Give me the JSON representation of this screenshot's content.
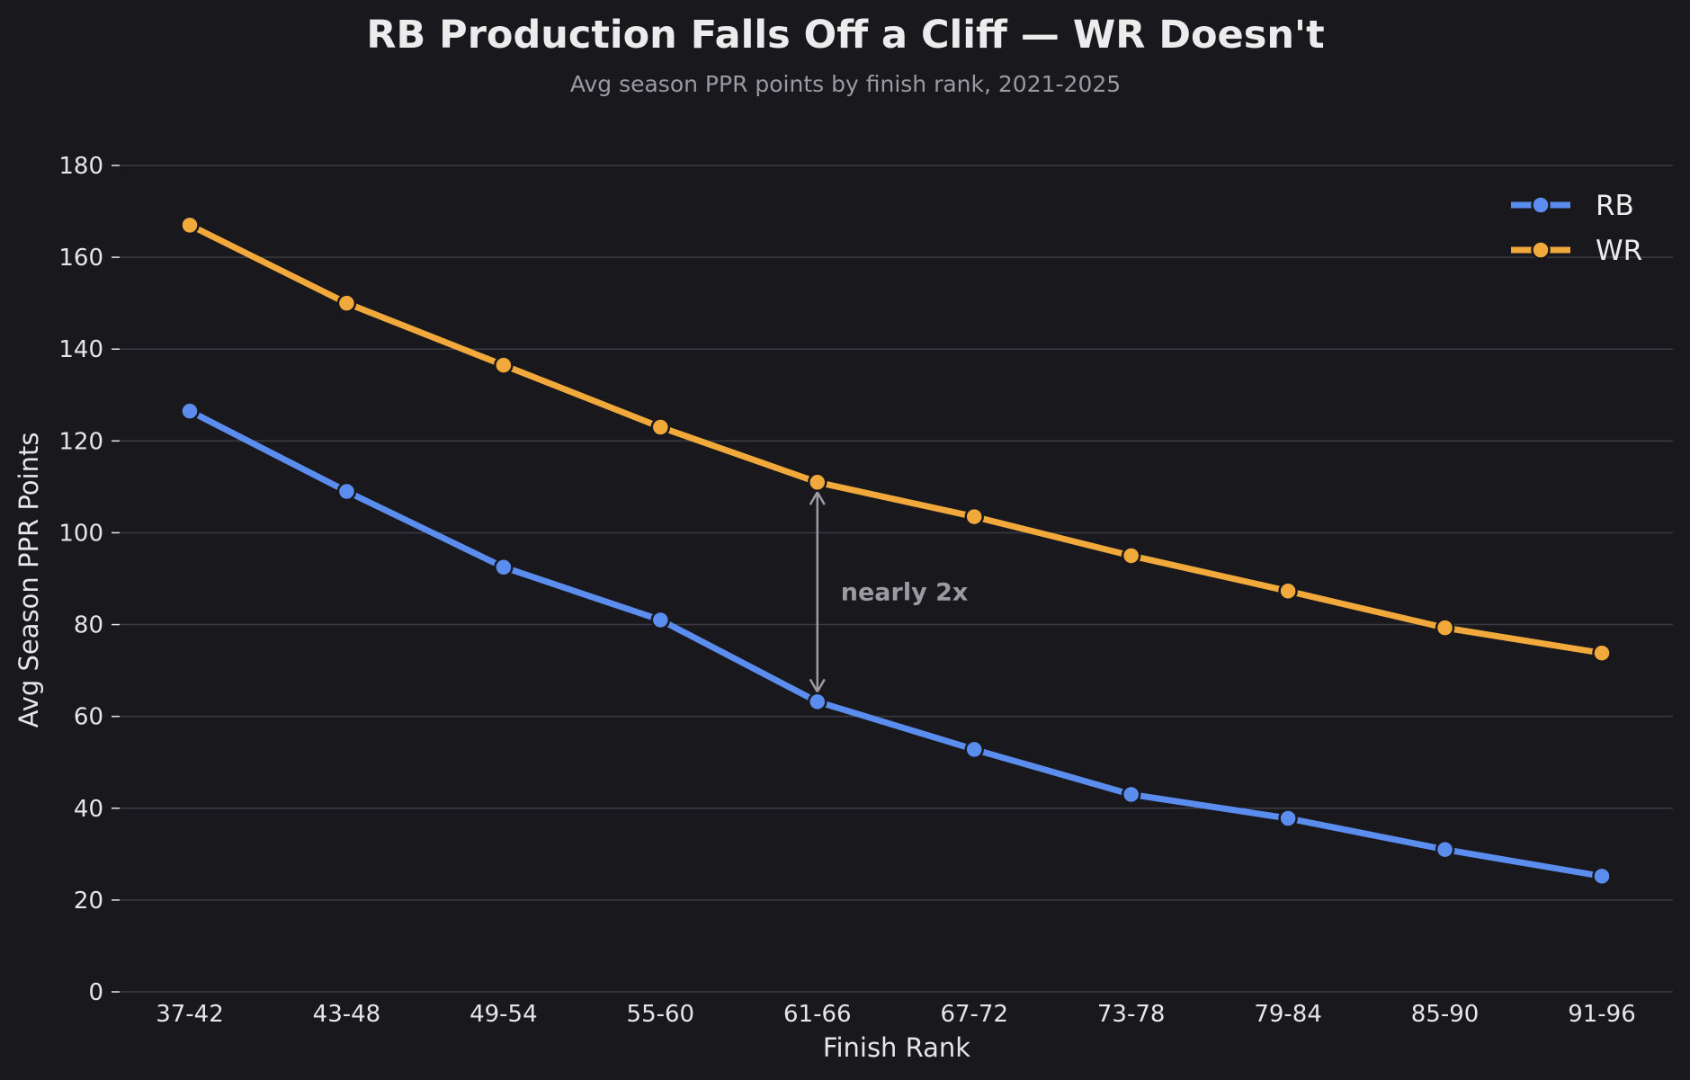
{
  "chart_data": {
    "type": "line",
    "title": "RB Production Falls Off a Cliff — WR Doesn't",
    "subtitle": "Avg season PPR points by finish rank, 2021-2025",
    "xlabel": "Finish Rank",
    "ylabel": "Avg Season PPR Points",
    "categories": [
      "37-42",
      "43-48",
      "49-54",
      "55-60",
      "61-66",
      "67-72",
      "73-78",
      "79-84",
      "85-90",
      "91-96"
    ],
    "ylim": [
      0,
      180
    ],
    "yticks": [
      "0",
      "20",
      "40",
      "60",
      "80",
      "100",
      "120",
      "140",
      "160",
      "180"
    ],
    "grid": "horizontal",
    "legend_position": "top-right",
    "series": [
      {
        "name": "RB",
        "color": "#5b8def",
        "values": [
          126.5,
          109,
          92.5,
          81,
          63.2,
          52.8,
          43,
          37.8,
          31,
          25.2
        ]
      },
      {
        "name": "WR",
        "color": "#f2a93b",
        "values": [
          167,
          150,
          136.5,
          123,
          111,
          103.5,
          95,
          87.3,
          79.3,
          73.8
        ]
      }
    ],
    "annotation": {
      "text": "nearly 2x",
      "category": "61-66",
      "from_series": "WR",
      "to_series": "RB",
      "color": "#9a9aa0"
    }
  }
}
